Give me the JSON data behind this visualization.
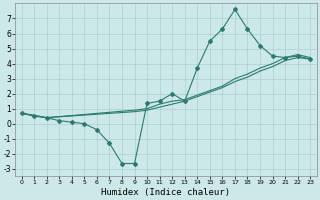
{
  "title": "",
  "xlabel": "Humidex (Indice chaleur)",
  "ylabel": "",
  "bg_color": "#cce8e8",
  "line_color": "#2d7a6e",
  "grid_color": "#aacfcf",
  "xlim": [
    -0.5,
    23.5
  ],
  "ylim": [
    -3.5,
    8.0
  ],
  "xticks": [
    0,
    1,
    2,
    3,
    4,
    5,
    6,
    7,
    8,
    9,
    10,
    11,
    12,
    13,
    14,
    15,
    16,
    17,
    18,
    19,
    20,
    21,
    22,
    23
  ],
  "yticks": [
    -3,
    -2,
    -1,
    0,
    1,
    2,
    3,
    4,
    5,
    6,
    7
  ],
  "curve1_x": [
    0,
    1,
    2,
    3,
    4,
    5,
    6,
    7,
    8,
    9,
    10,
    11,
    12,
    13,
    14,
    15,
    16,
    17,
    18,
    19,
    20,
    21,
    22,
    23
  ],
  "curve1_y": [
    0.7,
    0.5,
    0.4,
    0.2,
    0.1,
    0.0,
    -0.4,
    -1.3,
    -2.65,
    -2.65,
    1.35,
    1.5,
    2.0,
    1.5,
    3.7,
    5.5,
    6.3,
    7.6,
    6.3,
    5.2,
    4.5,
    4.4,
    4.5,
    4.3
  ],
  "curve2_x": [
    0,
    2,
    9,
    10,
    11,
    12,
    13,
    14,
    15,
    16,
    17,
    18,
    19,
    20,
    21,
    22,
    23
  ],
  "curve2_y": [
    0.7,
    0.4,
    0.9,
    1.0,
    1.3,
    1.5,
    1.6,
    1.9,
    2.2,
    2.5,
    3.0,
    3.3,
    3.7,
    4.0,
    4.4,
    4.6,
    4.4
  ],
  "curve3_x": [
    0,
    2,
    9,
    10,
    11,
    12,
    13,
    14,
    15,
    16,
    17,
    18,
    19,
    20,
    21,
    22,
    23
  ],
  "curve3_y": [
    0.7,
    0.4,
    0.8,
    0.9,
    1.1,
    1.3,
    1.5,
    1.8,
    2.1,
    2.4,
    2.8,
    3.1,
    3.5,
    3.8,
    4.2,
    4.4,
    4.3
  ]
}
